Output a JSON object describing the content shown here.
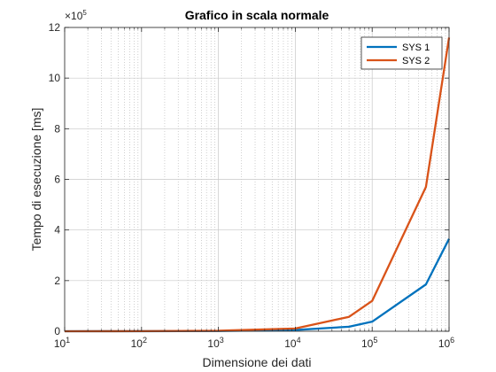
{
  "chart_data": {
    "type": "line",
    "title": "Grafico in scala normale",
    "xlabel": "Dimensione dei dati",
    "ylabel": "Tempo di esecuzione [ms]",
    "x_scale": "log",
    "xlim": [
      10,
      1000000
    ],
    "ylim": [
      0,
      1200000
    ],
    "y_multiplier": {
      "base": "10",
      "exp": "5",
      "prefix": "×"
    },
    "x_ticks": [
      {
        "value": 10,
        "base": "10",
        "exp": "1"
      },
      {
        "value": 100,
        "base": "10",
        "exp": "2"
      },
      {
        "value": 1000,
        "base": "10",
        "exp": "3"
      },
      {
        "value": 10000,
        "base": "10",
        "exp": "4"
      },
      {
        "value": 100000,
        "base": "10",
        "exp": "5"
      },
      {
        "value": 1000000,
        "base": "10",
        "exp": "6"
      }
    ],
    "y_ticks": [
      {
        "value": 0,
        "label": "0"
      },
      {
        "value": 200000,
        "label": "2"
      },
      {
        "value": 400000,
        "label": "4"
      },
      {
        "value": 600000,
        "label": "6"
      },
      {
        "value": 800000,
        "label": "8"
      },
      {
        "value": 1000000,
        "label": "10"
      },
      {
        "value": 1200000,
        "label": "12"
      }
    ],
    "grid": true,
    "legend_position": "top-right",
    "series": [
      {
        "name": "SYS 1",
        "color": "#0072BD",
        "x": [
          10,
          100,
          1000,
          10000,
          50000,
          100000,
          500000,
          1000000
        ],
        "y": [
          0,
          200,
          900,
          5000,
          18000,
          38000,
          185000,
          365000
        ]
      },
      {
        "name": "SYS 2",
        "color": "#D95319",
        "x": [
          10,
          100,
          1000,
          10000,
          50000,
          100000,
          500000,
          1000000
        ],
        "y": [
          0,
          400,
          2000,
          11000,
          57000,
          120000,
          570000,
          1160000
        ]
      }
    ]
  }
}
